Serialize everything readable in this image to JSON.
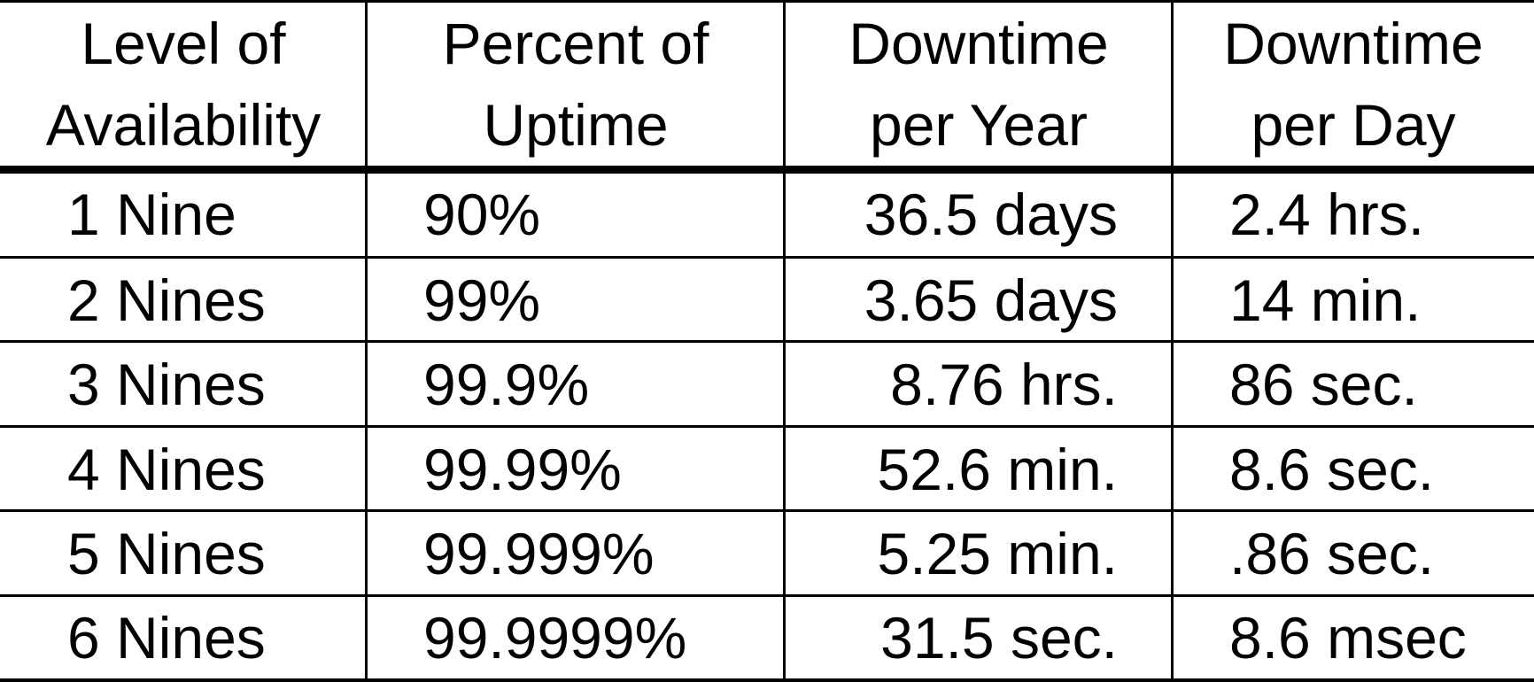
{
  "table": {
    "headers": [
      [
        "Level of",
        "Availability"
      ],
      [
        "Percent of",
        "Uptime"
      ],
      [
        "Downtime",
        "per Year"
      ],
      [
        "Downtime",
        "per Day"
      ]
    ],
    "rows": [
      [
        "1 Nine",
        "90%",
        "36.5 days",
        "2.4 hrs."
      ],
      [
        "2 Nines",
        "99%",
        "3.65 days",
        "14 min."
      ],
      [
        "3 Nines",
        "99.9%",
        "8.76 hrs.",
        "86 sec."
      ],
      [
        "4 Nines",
        "99.99%",
        "52.6 min.",
        "8.6 sec."
      ],
      [
        "5 Nines",
        "99.999%",
        "5.25 min.",
        ".86 sec."
      ],
      [
        "6 Nines",
        "99.9999%",
        "31.5 sec.",
        "8.6 msec"
      ]
    ]
  }
}
